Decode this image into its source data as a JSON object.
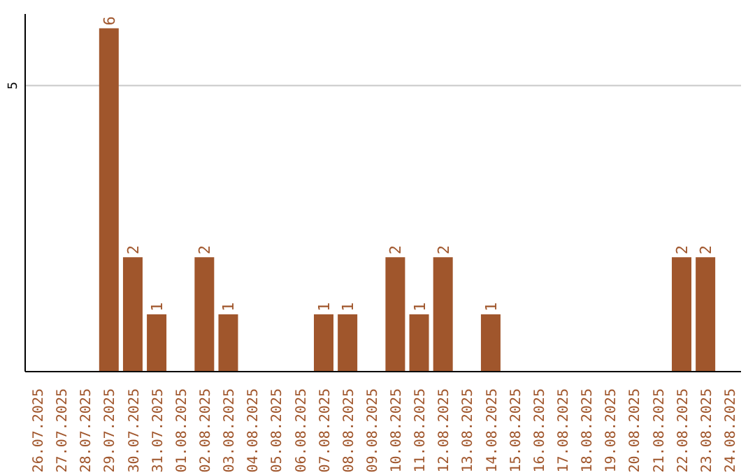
{
  "chart_data": {
    "type": "bar",
    "categories": [
      "26.07.2025",
      "27.07.2025",
      "28.07.2025",
      "29.07.2025",
      "30.07.2025",
      "31.07.2025",
      "01.08.2025",
      "02.08.2025",
      "03.08.2025",
      "04.08.2025",
      "05.08.2025",
      "06.08.2025",
      "07.08.2025",
      "08.08.2025",
      "09.08.2025",
      "10.08.2025",
      "11.08.2025",
      "12.08.2025",
      "13.08.2025",
      "14.08.2025",
      "15.08.2025",
      "16.08.2025",
      "17.08.2025",
      "18.08.2025",
      "19.08.2025",
      "20.08.2025",
      "21.08.2025",
      "22.08.2025",
      "23.08.2025",
      "24.08.2025"
    ],
    "values": [
      0,
      0,
      0,
      6,
      2,
      1,
      0,
      2,
      1,
      0,
      0,
      0,
      1,
      1,
      0,
      2,
      1,
      2,
      0,
      1,
      0,
      0,
      0,
      0,
      0,
      0,
      0,
      2,
      2,
      0
    ],
    "value_labels": [
      null,
      null,
      null,
      "6",
      "2",
      "1",
      null,
      "2",
      "1",
      null,
      null,
      null,
      "1",
      "1",
      null,
      "2",
      "1",
      "2",
      null,
      "1",
      null,
      null,
      null,
      null,
      null,
      null,
      null,
      "2",
      "2",
      null
    ],
    "color": "#a0562c",
    "ylim": [
      0,
      6.25
    ],
    "yticks": [
      5
    ],
    "grid": "y"
  }
}
